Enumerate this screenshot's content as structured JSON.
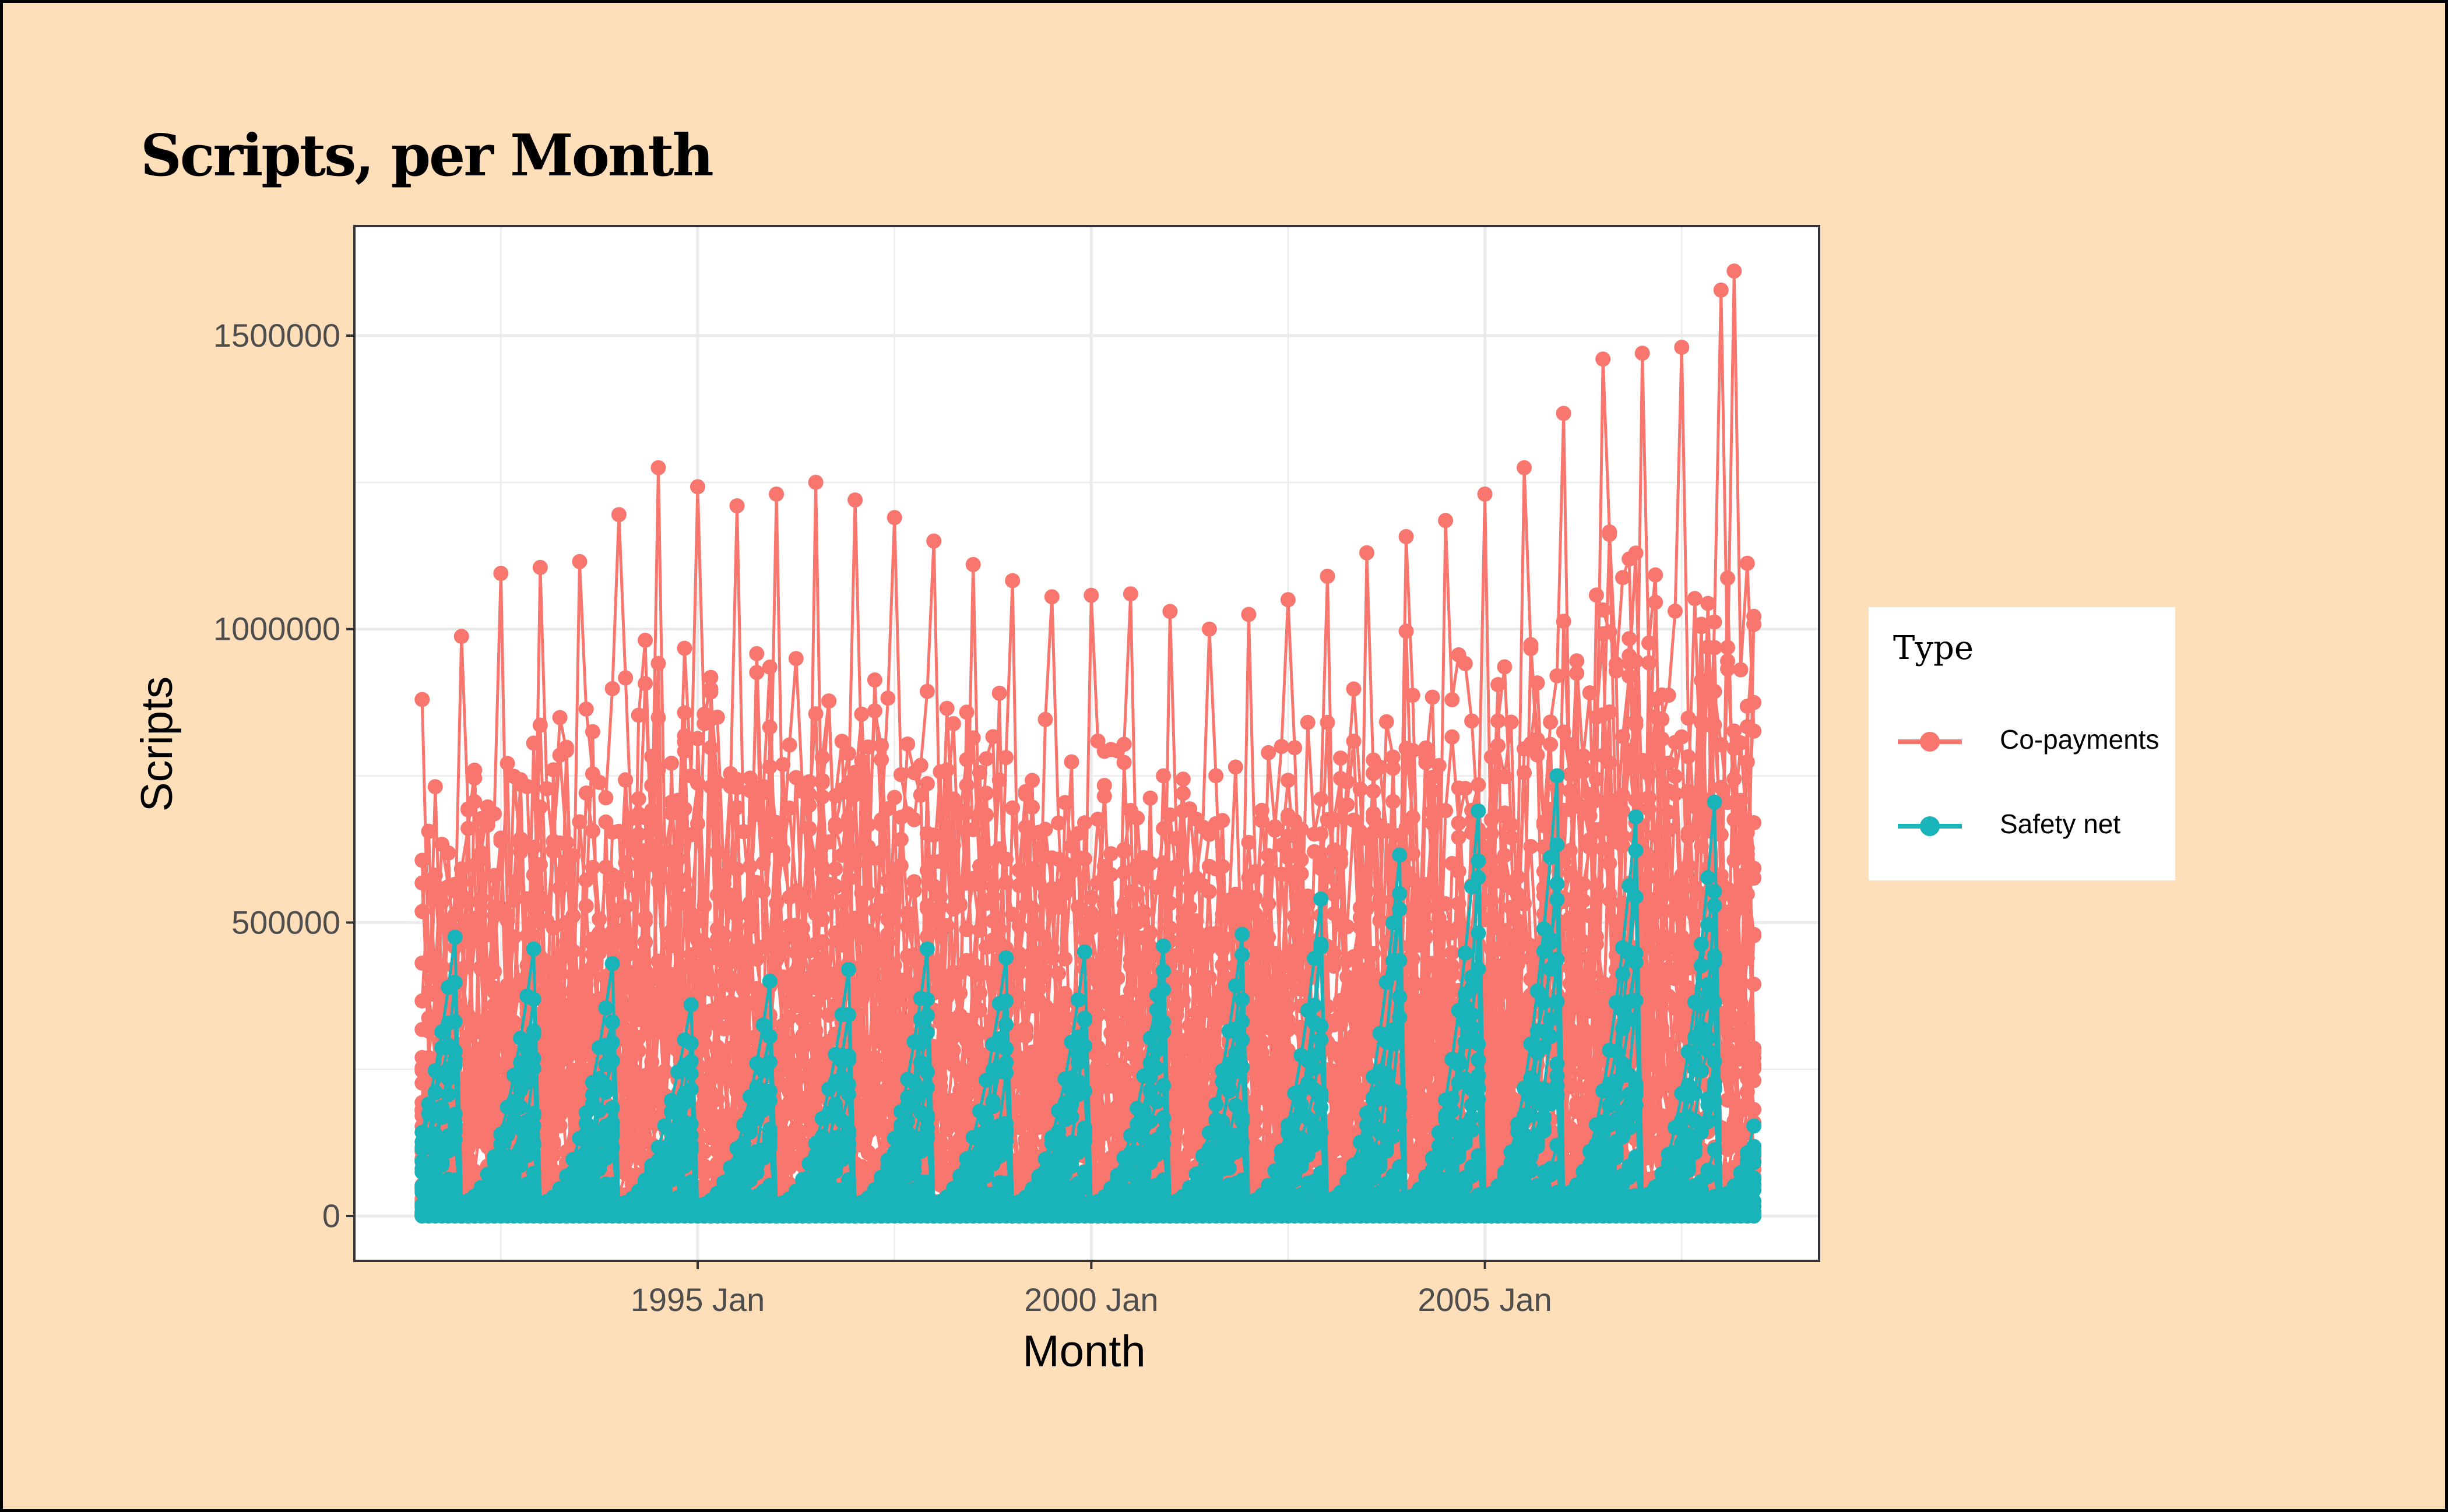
{
  "chart_data": {
    "type": "line",
    "title": "Scripts, per Month",
    "xlabel": "Month",
    "ylabel": "Scripts",
    "x_range": [
      "1991 Jul",
      "2008 Jun"
    ],
    "x_ticks": [
      "1995 Jan",
      "2000 Jan",
      "2005 Jan"
    ],
    "ylim": [
      0,
      1650000
    ],
    "y_ticks": [
      0,
      500000,
      1000000,
      1500000
    ],
    "y_tick_labels": [
      "0",
      "500000",
      "1000000",
      "1500000"
    ],
    "grid": true,
    "markers": true,
    "legend": {
      "title": "Type",
      "placement": "right"
    },
    "series": [
      {
        "name": "Co-payments",
        "color": "#f8766d",
        "x": [
          "1991 Jul",
          "1992 Jul",
          "1993 Jul",
          "1994 Jul",
          "1995 Jul",
          "1996 Jul",
          "1997 Jul",
          "1998 Jul",
          "1999 Jul",
          "2000 Jul",
          "2001 Jul",
          "2002 Jul",
          "2003 Jul",
          "2004 Jul",
          "2005 Jul",
          "2006 Jul",
          "2007 Jul",
          "2008 Mar"
        ],
        "peak_values": [
          880000,
          1095000,
          1115000,
          1275000,
          1210000,
          1250000,
          1190000,
          1110000,
          1055000,
          1060000,
          1000000,
          1050000,
          1130000,
          1185000,
          1275000,
          1460000,
          1480000,
          1610000
        ]
      },
      {
        "name": "Safety net",
        "color": "#19b4b9",
        "x": [
          "1991 Dec",
          "1992 Dec",
          "1993 Dec",
          "1994 Dec",
          "1995 Dec",
          "1996 Dec",
          "1997 Dec",
          "1998 Dec",
          "1999 Dec",
          "2000 Dec",
          "2001 Dec",
          "2002 Dec",
          "2003 Dec",
          "2004 Dec",
          "2005 Dec",
          "2006 Dec",
          "2007 Dec"
        ],
        "peak_values": [
          475000,
          455000,
          430000,
          360000,
          400000,
          420000,
          455000,
          440000,
          450000,
          460000,
          480000,
          540000,
          615000,
          690000,
          750000,
          680000,
          705000
        ]
      }
    ]
  }
}
